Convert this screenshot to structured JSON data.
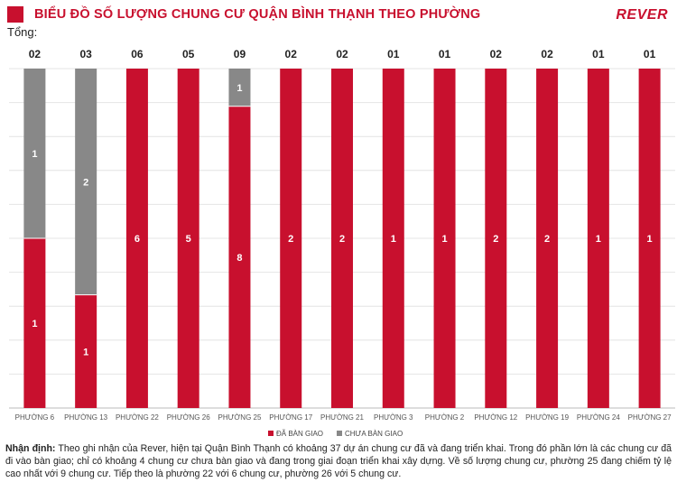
{
  "header": {
    "title": "BIỂU ĐỒ SỐ LƯỢNG CHUNG CƯ QUẬN BÌNH THẠNH THEO PHƯỜNG",
    "brand": "REVER",
    "total_label": "Tổng:"
  },
  "colors": {
    "accent": "#c8102e",
    "delivered": "#c8102e",
    "undelivered": "#888888"
  },
  "chart_data": {
    "type": "bar",
    "stacked": true,
    "categories": [
      "PHƯỜNG 6",
      "PHƯỜNG 13",
      "PHƯỜNG 22",
      "PHƯỜNG 26",
      "PHƯỜNG 25",
      "PHƯỜNG 17",
      "PHƯỜNG 21",
      "PHƯỜNG 3",
      "PHƯỜNG 2",
      "PHƯỜNG 12",
      "PHƯỜNG 19",
      "PHƯỜNG 24",
      "PHƯỜNG 27"
    ],
    "totals": [
      "02",
      "03",
      "06",
      "05",
      "09",
      "02",
      "02",
      "01",
      "01",
      "02",
      "02",
      "01",
      "01"
    ],
    "series": [
      {
        "name": "ĐÃ BÀN GIAO",
        "color": "#c8102e",
        "values": [
          1,
          1,
          6,
          5,
          8,
          2,
          2,
          1,
          1,
          2,
          2,
          1,
          1
        ]
      },
      {
        "name": "CHƯA BÀN GIAO",
        "color": "#888888",
        "values": [
          1,
          2,
          0,
          0,
          1,
          0,
          0,
          0,
          0,
          0,
          0,
          0,
          0
        ]
      }
    ],
    "legend_position": "bottom",
    "grid": true
  },
  "note": {
    "label": "Nhận định:",
    "text": " Theo ghi nhận của Rever, hiện tại Quận Bình Thạnh có khoảng 37 dự án chung cư đã và đang triển khai. Trong đó phần lớn là các chung cư đã đi vào bàn giao; chỉ có khoảng 4 chung cư chưa bàn giao và đang trong giai đoạn triển khai xây dựng. Về số lượng chung cư, phường 25 đang chiếm tỷ lệ cao nhất với 9 chung cư. Tiếp theo là phường 22 với 6 chung cư, phường 26 với 5 chung cư."
  }
}
